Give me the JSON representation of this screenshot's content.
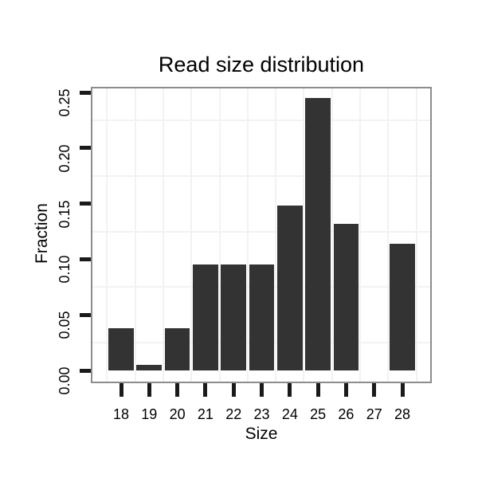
{
  "chart_data": {
    "type": "bar",
    "title": "Read size distribution",
    "xlabel": "Size",
    "ylabel": "Fraction",
    "categories": [
      "18",
      "19",
      "20",
      "21",
      "22",
      "23",
      "24",
      "25",
      "26",
      "27",
      "28"
    ],
    "x_positions": [
      18,
      19,
      20,
      21,
      22,
      23,
      24,
      25,
      26,
      27,
      28
    ],
    "values": [
      0.038,
      0.005,
      0.038,
      0.095,
      0.095,
      0.095,
      0.148,
      0.245,
      0.132,
      0,
      0.114
    ],
    "bar_width": 0.9,
    "yticks": [
      0,
      0.05,
      0.1,
      0.15,
      0.2,
      0.25
    ],
    "ytick_labels": [
      "0.00",
      "0.05",
      "0.10",
      "0.15",
      "0.20",
      "0.25"
    ],
    "minor_gridlines_y": [
      0.025,
      0.075,
      0.125,
      0.175,
      0.225
    ],
    "minor_gridlines_x": [
      17.5,
      18.5,
      19.5,
      20.5,
      21.5,
      22.5,
      23.5,
      24.5,
      25.5,
      26.5,
      27.5,
      28.5
    ],
    "xlim": [
      16.98,
      28.99
    ],
    "ylim": [
      -0.01,
      0.2536
    ],
    "grid": "minor-only",
    "legend": "none",
    "colors": {
      "bar_fill": "#333333",
      "panel_border": "#8c8c8c",
      "gridline": "#f2f2f2",
      "tick": "#1a1a1a",
      "text": "#000000",
      "background": "#ffffff"
    }
  }
}
